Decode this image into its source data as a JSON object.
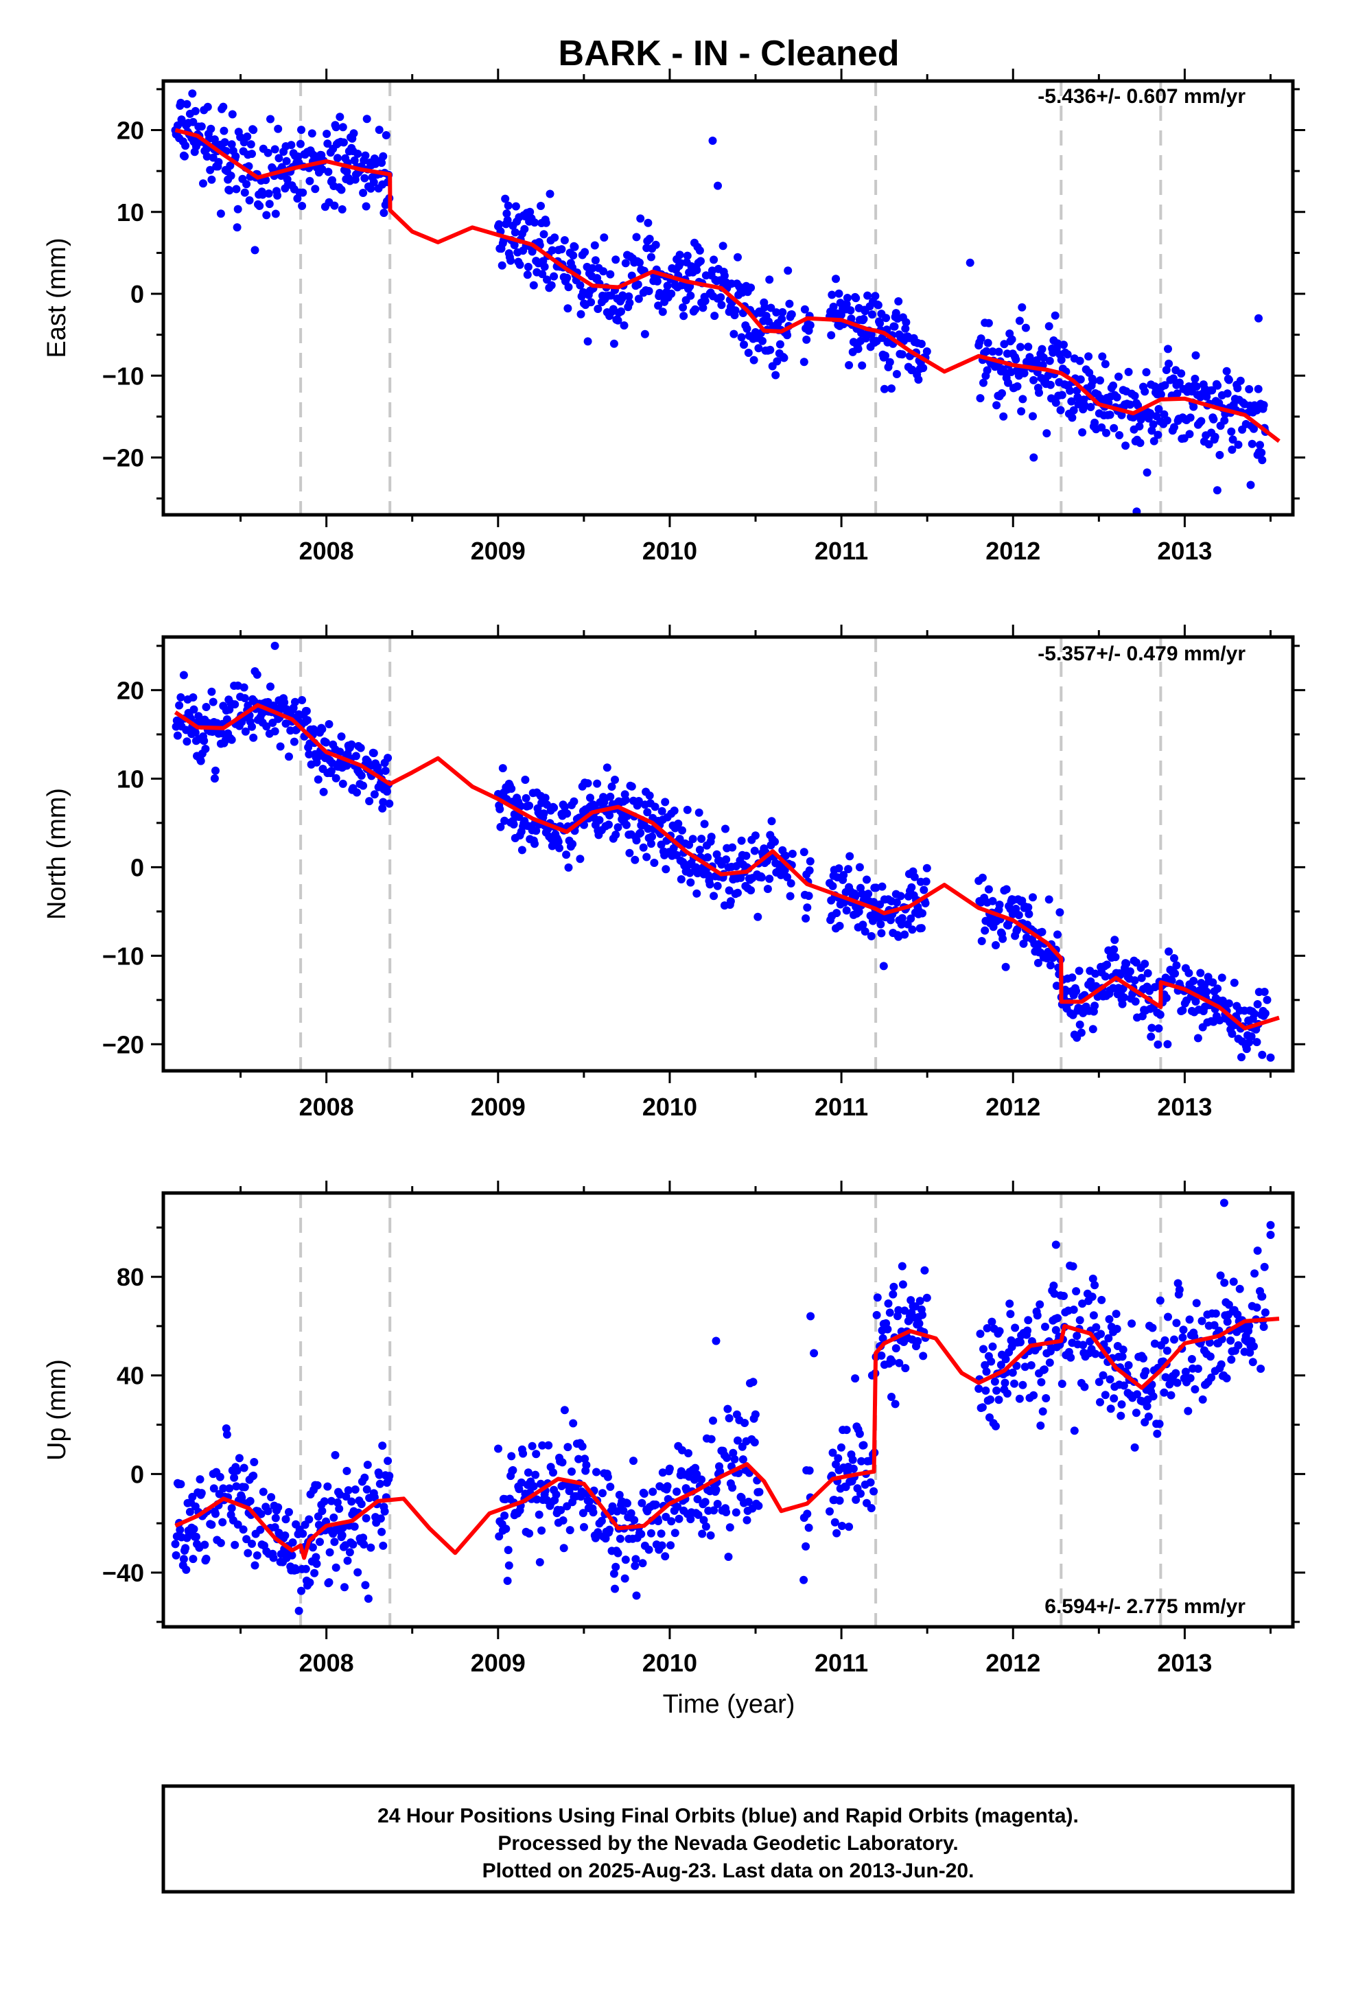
{
  "figure": {
    "title": "BARK  - IN - Cleaned",
    "xlabel": "Time (year)",
    "footer": [
      "24 Hour Positions Using Final Orbits (blue) and Rapid Orbits (magenta).",
      "Processed by the Nevada Geodetic Laboratory.",
      "Plotted on 2025-Aug-23. Last data on 2013-Jun-20."
    ]
  },
  "colors": {
    "points": "#0000ff",
    "model": "#ff0000",
    "event_lines": "#c8c8c8",
    "frame": "#000000"
  },
  "chart_data": [
    {
      "type": "scatter",
      "name": "east",
      "ylabel": "East (mm)",
      "rate": "-5.436+/- 0.607 mm/yr",
      "xlim": [
        2007.05,
        2013.63
      ],
      "ylim": [
        -27,
        26
      ],
      "xticks": [
        2008,
        2009,
        2010,
        2011,
        2012,
        2013
      ],
      "yticks": [
        -20,
        -10,
        0,
        10,
        20
      ],
      "event_lines": [
        2007.85,
        2008.37,
        2011.2,
        2012.28,
        2012.86
      ],
      "data_gaps": [
        [
          2008.37,
          2009.0
        ],
        [
          2010.72,
          2010.78
        ],
        [
          2010.82,
          2010.93
        ],
        [
          2011.5,
          2011.8
        ]
      ],
      "point_spread_mm": 2.6,
      "extra_points": [
        [
          2010.25,
          18.7
        ],
        [
          2010.28,
          13.2
        ],
        [
          2011.75,
          3.8
        ],
        [
          2012.72,
          -26.6
        ],
        [
          2013.43,
          -3
        ],
        [
          2012.12,
          -20.0
        ],
        [
          2013.19,
          -24.0
        ]
      ],
      "model": {
        "x": [
          2007.12,
          2007.25,
          2007.4,
          2007.6,
          2007.8,
          2008.0,
          2008.2,
          2008.37,
          2008.371,
          2008.5,
          2008.65,
          2008.85,
          2009.0,
          2009.2,
          2009.4,
          2009.55,
          2009.7,
          2009.9,
          2010.1,
          2010.3,
          2010.45,
          2010.55,
          2010.65,
          2010.8,
          2011.0,
          2011.15,
          2011.2,
          2011.25,
          2011.4,
          2011.6,
          2011.8,
          2012.0,
          2012.2,
          2012.28,
          2012.35,
          2012.5,
          2012.7,
          2012.86,
          2013.0,
          2013.2,
          2013.35,
          2013.55
        ],
        "y": [
          20,
          19.3,
          17,
          14.2,
          15.3,
          16.2,
          15.2,
          14.6,
          10.2,
          7.6,
          6.3,
          8.1,
          7.2,
          6,
          3,
          1,
          0.8,
          2.7,
          1.5,
          0.7,
          -2,
          -4.5,
          -4.6,
          -3,
          -3.2,
          -4.3,
          -4.5,
          -4.8,
          -7,
          -9.5,
          -7.6,
          -8.7,
          -9.3,
          -9.7,
          -10.6,
          -13.5,
          -14.6,
          -12.9,
          -12.8,
          -14,
          -14.8,
          -18
        ]
      }
    },
    {
      "type": "scatter",
      "name": "north",
      "ylabel": "North (mm)",
      "rate": "-5.357+/- 0.479 mm/yr",
      "xlim": [
        2007.05,
        2013.63
      ],
      "ylim": [
        -23,
        26
      ],
      "xticks": [
        2008,
        2009,
        2010,
        2011,
        2012,
        2013
      ],
      "yticks": [
        -20,
        -10,
        0,
        10,
        20
      ],
      "event_lines": [
        2007.85,
        2008.37,
        2011.2,
        2012.28,
        2012.86
      ],
      "data_gaps": [
        [
          2008.37,
          2009.0
        ],
        [
          2010.72,
          2010.78
        ],
        [
          2010.82,
          2010.93
        ],
        [
          2011.5,
          2011.8
        ]
      ],
      "point_spread_mm": 1.9,
      "extra_points": [
        [
          2007.7,
          25
        ],
        [
          2013.5,
          -21.5
        ],
        [
          2013.48,
          -15
        ],
        [
          2012.9,
          -20
        ]
      ],
      "model": {
        "x": [
          2007.12,
          2007.25,
          2007.4,
          2007.6,
          2007.8,
          2008.0,
          2008.2,
          2008.37,
          2008.5,
          2008.65,
          2008.85,
          2009.0,
          2009.2,
          2009.4,
          2009.55,
          2009.7,
          2009.9,
          2010.1,
          2010.3,
          2010.45,
          2010.6,
          2010.8,
          2011.0,
          2011.2,
          2011.25,
          2011.4,
          2011.6,
          2011.8,
          2012.0,
          2012.2,
          2012.28,
          2012.281,
          2012.4,
          2012.6,
          2012.86,
          2012.861,
          2013.0,
          2013.2,
          2013.35,
          2013.55
        ],
        "y": [
          17.5,
          15.8,
          15.7,
          18.3,
          16.7,
          13,
          11.5,
          9.4,
          10.7,
          12.3,
          9.1,
          7.7,
          5.5,
          4,
          6.2,
          6.8,
          5,
          1.7,
          -0.8,
          -0.5,
          1.8,
          -1.9,
          -3.3,
          -4.7,
          -5.2,
          -4.4,
          -2,
          -4.6,
          -6,
          -8.6,
          -10.3,
          -15.2,
          -15.2,
          -12.5,
          -15.8,
          -13,
          -13.8,
          -15.8,
          -18.2,
          -17
        ]
      }
    },
    {
      "type": "scatter",
      "name": "up",
      "ylabel": "Up (mm)",
      "rate": "6.594+/- 2.775 mm/yr",
      "xlim": [
        2007.05,
        2013.63
      ],
      "ylim": [
        -62,
        114
      ],
      "xticks": [
        2008,
        2009,
        2010,
        2011,
        2012,
        2013
      ],
      "yticks": [
        -40,
        0,
        40,
        80
      ],
      "event_lines": [
        2007.85,
        2008.37,
        2011.2,
        2012.28,
        2012.86
      ],
      "data_gaps": [
        [
          2008.37,
          2009.0
        ],
        [
          2010.53,
          2010.78
        ],
        [
          2010.82,
          2010.93
        ],
        [
          2011.5,
          2011.8
        ]
      ],
      "point_spread_mm": 12,
      "extra_points": [
        [
          2013.23,
          110
        ],
        [
          2013.5,
          101
        ],
        [
          2013.5,
          97
        ],
        [
          2012.25,
          93
        ],
        [
          2010.27,
          54
        ],
        [
          2010.82,
          64
        ],
        [
          2010.84,
          49
        ],
        [
          2010.78,
          -43
        ]
      ],
      "model": {
        "x": [
          2007.12,
          2007.25,
          2007.4,
          2007.55,
          2007.7,
          2007.8,
          2007.85,
          2007.87,
          2007.9,
          2008.0,
          2008.15,
          2008.3,
          2008.45,
          2008.6,
          2008.75,
          2008.95,
          2009.15,
          2009.35,
          2009.5,
          2009.7,
          2009.85,
          2010.0,
          2010.15,
          2010.3,
          2010.45,
          2010.55,
          2010.65,
          2010.8,
          2010.95,
          2011.1,
          2011.19,
          2011.2,
          2011.25,
          2011.4,
          2011.55,
          2011.7,
          2011.8,
          2011.95,
          2012.1,
          2012.28,
          2012.3,
          2012.45,
          2012.6,
          2012.75,
          2012.86,
          2013.0,
          2013.2,
          2013.35,
          2013.55
        ],
        "y": [
          -21,
          -17,
          -10,
          -14,
          -26,
          -31,
          -29,
          -34,
          -27,
          -21,
          -19,
          -11,
          -10,
          -22,
          -32,
          -16,
          -11,
          -2,
          -4,
          -22,
          -21,
          -12,
          -7,
          -1,
          4,
          -3,
          -15,
          -12,
          -2,
          0,
          1,
          49,
          53,
          58,
          55,
          41,
          37,
          42,
          52,
          54,
          60,
          57,
          43,
          35,
          42,
          53,
          56,
          62,
          63
        ]
      }
    }
  ]
}
